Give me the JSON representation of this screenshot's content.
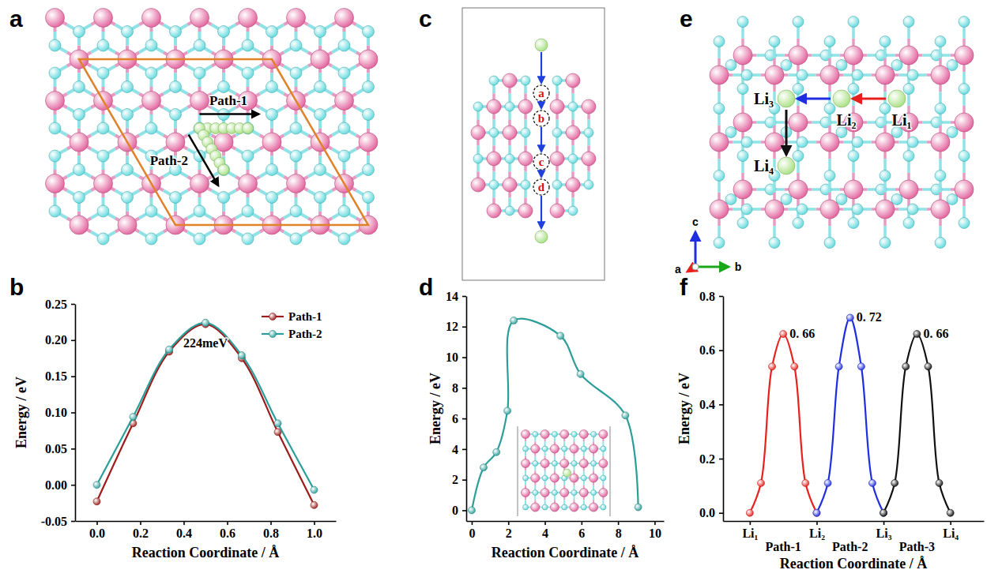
{
  "chart_data": [
    {
      "panel_label": "b",
      "type": "line",
      "xlabel": "Reaction Coordinate / Å",
      "ylabel": "Energy / eV",
      "xlim": [
        -0.1,
        1.1
      ],
      "xticks": [
        {
          "value": 0,
          "label": "0.0"
        },
        0.2,
        0.4,
        0.6,
        0.8,
        {
          "value": 1,
          "label": "1.0"
        }
      ],
      "ylim": [
        -0.05,
        0.25
      ],
      "yticks": [
        -0.05,
        {
          "value": 0,
          "label": "0.00"
        },
        0.05,
        {
          "value": 0.1,
          "label": "0.10"
        },
        0.15,
        {
          "value": 0.2,
          "label": "0.20"
        },
        0.25
      ],
      "legend": "upper right",
      "marker": "circle",
      "series": [
        {
          "name": "Path-1",
          "color": "#9e1b1b",
          "x": [
            0,
            0.167,
            0.333,
            0.5,
            0.667,
            0.833,
            1
          ],
          "values": [
            -0.023,
            0.085,
            0.184,
            0.222,
            0.175,
            0.073,
            -0.028
          ]
        },
        {
          "name": "Path-2",
          "color": "#2b9e99",
          "x": [
            0,
            0.167,
            0.333,
            0.5,
            0.667,
            0.833,
            1
          ],
          "values": [
            0.0,
            0.094,
            0.187,
            0.224,
            0.179,
            0.085,
            -0.007
          ]
        }
      ],
      "annotations": [
        {
          "text": "224meV",
          "x": 0.5,
          "y": 0.19
        }
      ]
    },
    {
      "panel_label": "d",
      "type": "line",
      "xlabel": "Reaction Coordinate / Å",
      "ylabel": "Energy / eV",
      "xlim": [
        -0.3,
        10.5
      ],
      "xticks": [
        0,
        2,
        4,
        6,
        8,
        10
      ],
      "ylim": [
        -0.7,
        14
      ],
      "yticks": [
        0,
        2,
        4,
        6,
        8,
        10,
        12,
        14
      ],
      "marker": "circle",
      "series": [
        {
          "color": "#2b9e99",
          "x": [
            0,
            0.65,
            1.35,
            1.95,
            2.3,
            4.85,
            5.95,
            8.4,
            9.1
          ],
          "values": [
            0,
            2.8,
            3.8,
            6.5,
            12.4,
            11.4,
            8.9,
            6.2,
            0.2
          ]
        }
      ]
    },
    {
      "panel_label": "f",
      "type": "line",
      "xlabel": "Reaction Coordinate / Å",
      "ylabel": "Energy / eV",
      "xlim": [
        -0.4,
        3.5
      ],
      "xticks": [
        {
          "value": 0,
          "label": "Li₁"
        },
        {
          "value": 1,
          "label": "Li₂"
        },
        {
          "value": 2,
          "label": "Li₃"
        },
        {
          "value": 3,
          "label": "Li₄"
        }
      ],
      "ylim": [
        -0.03,
        0.8
      ],
      "yticks": [
        {
          "value": 0,
          "label": "0.0"
        },
        0.2,
        0.4,
        0.6,
        0.8
      ],
      "marker": "circle",
      "series": [
        {
          "name": "Path-1",
          "color": "#e8201c",
          "x": [
            0,
            0.167,
            0.333,
            0.5,
            0.667,
            0.833,
            1
          ],
          "values": [
            0,
            0.11,
            0.54,
            0.66,
            0.54,
            0.11,
            0
          ]
        },
        {
          "name": "Path-2",
          "color": "#1f2ee0",
          "x": [
            1,
            1.167,
            1.333,
            1.5,
            1.667,
            1.833,
            2
          ],
          "values": [
            0,
            0.11,
            0.54,
            0.72,
            0.54,
            0.11,
            0
          ]
        },
        {
          "name": "Path-3",
          "color": "#111111",
          "x": [
            2,
            2.167,
            2.333,
            2.5,
            2.667,
            2.833,
            3
          ],
          "values": [
            0,
            0.11,
            0.54,
            0.66,
            0.54,
            0.11,
            0
          ]
        }
      ],
      "annotations": [
        {
          "text": "0. 66",
          "x": 0.5,
          "y": 0.66
        },
        {
          "text": "0. 72",
          "x": 1.5,
          "y": 0.72
        },
        {
          "text": "0. 66",
          "x": 2.5,
          "y": 0.66
        }
      ]
    }
  ],
  "diagrams": [
    {
      "panel_label": "a",
      "paths": [
        "Path-1",
        "Path-2"
      ]
    },
    {
      "panel_label": "c",
      "sites": [
        "a",
        "b",
        "c",
        "d"
      ]
    },
    {
      "panel_label": "e",
      "atoms": [
        "Li₁",
        "Li₂",
        "Li₃",
        "Li₄"
      ],
      "axes": [
        "a",
        "b",
        "c"
      ]
    }
  ]
}
